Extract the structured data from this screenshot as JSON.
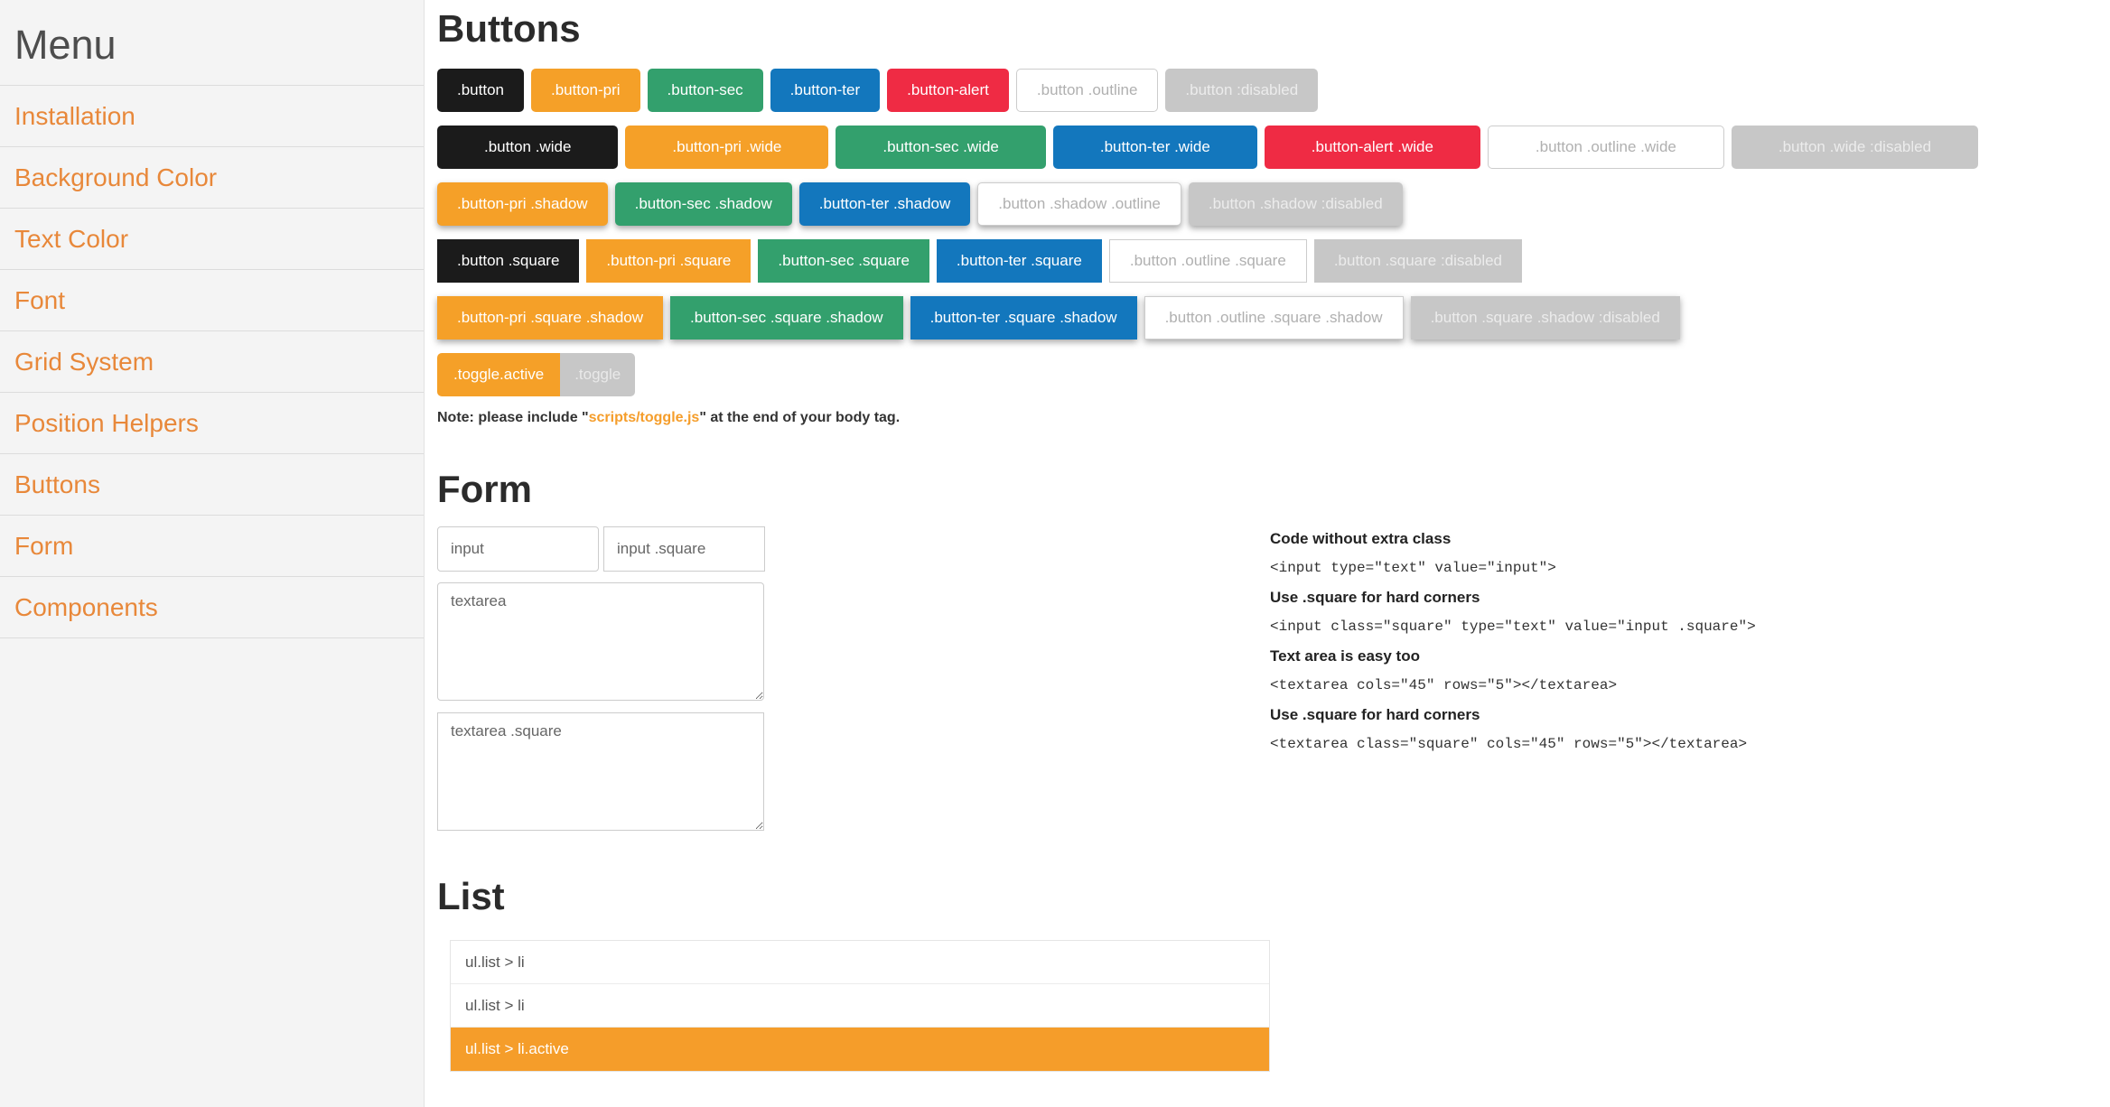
{
  "colors": {
    "button_black": "#1b1b1b",
    "primary_orange": "#f5a028",
    "secondary_green": "#33a06d",
    "tertiary_blue": "#1377bd",
    "alert_red": "#ef2b44",
    "disabled_gray": "#c7c7c7",
    "sidebar_link_orange": "#e8883a",
    "list_active_orange": "#f59d2a",
    "sidebar_background": "#f4f4f4"
  },
  "sidebar": {
    "title": "Menu",
    "items": [
      {
        "label": "Installation"
      },
      {
        "label": "Background Color"
      },
      {
        "label": "Text Color"
      },
      {
        "label": "Font"
      },
      {
        "label": "Grid System"
      },
      {
        "label": "Position Helpers"
      },
      {
        "label": "Buttons"
      },
      {
        "label": "Form"
      },
      {
        "label": "Components"
      }
    ]
  },
  "buttons": {
    "title": "Buttons",
    "rows": [
      [
        {
          "label": ".button",
          "variant": "default"
        },
        {
          "label": ".button-pri",
          "variant": "pri"
        },
        {
          "label": ".button-sec",
          "variant": "sec"
        },
        {
          "label": ".button-ter",
          "variant": "ter"
        },
        {
          "label": ".button-alert",
          "variant": "alert"
        },
        {
          "label": ".button .outline",
          "variant": "outline"
        },
        {
          "label": ".button :disabled",
          "variant": "disabled"
        }
      ],
      [
        {
          "label": ".button .wide",
          "variant": "default wide"
        },
        {
          "label": ".button-pri .wide",
          "variant": "pri wide"
        },
        {
          "label": ".button-sec .wide",
          "variant": "sec wide"
        },
        {
          "label": ".button-ter .wide",
          "variant": "ter wide"
        },
        {
          "label": ".button-alert .wide",
          "variant": "alert wide"
        },
        {
          "label": ".button .outline .wide",
          "variant": "outline wide"
        },
        {
          "label": ".button .wide :disabled",
          "variant": "disabled wide"
        }
      ],
      [
        {
          "label": ".button-pri .shadow",
          "variant": "pri shadow"
        },
        {
          "label": ".button-sec .shadow",
          "variant": "sec shadow"
        },
        {
          "label": ".button-ter .shadow",
          "variant": "ter shadow"
        },
        {
          "label": ".button .shadow .outline",
          "variant": "outline shadow"
        },
        {
          "label": ".button .shadow :disabled",
          "variant": "disabled shadow"
        }
      ],
      [
        {
          "label": ".button .square",
          "variant": "default square"
        },
        {
          "label": ".button-pri .square",
          "variant": "pri square"
        },
        {
          "label": ".button-sec .square",
          "variant": "sec square"
        },
        {
          "label": ".button-ter .square",
          "variant": "ter square"
        },
        {
          "label": ".button .outline .square",
          "variant": "outline square"
        },
        {
          "label": ".button .square :disabled",
          "variant": "disabled square"
        }
      ],
      [
        {
          "label": ".button-pri .square .shadow",
          "variant": "pri square shadow"
        },
        {
          "label": ".button-sec .square .shadow",
          "variant": "sec square shadow"
        },
        {
          "label": ".button-ter .square .shadow",
          "variant": "ter square shadow"
        },
        {
          "label": ".button .outline .square .shadow",
          "variant": "outline square shadow"
        },
        {
          "label": ".button .square .shadow :disabled",
          "variant": "disabled square shadow"
        }
      ]
    ],
    "toggle": [
      {
        "label": ".toggle.active",
        "variant": "toggle-active"
      },
      {
        "label": ".toggle",
        "variant": "toggle-off"
      }
    ],
    "note": {
      "prefix": "Note: please include \"",
      "link": "scripts/toggle.js",
      "suffix": "\" at the end of your body tag."
    }
  },
  "form": {
    "title": "Form",
    "inputs": [
      {
        "value": "input"
      },
      {
        "value": "input .square"
      }
    ],
    "textareas": [
      {
        "value": "textarea"
      },
      {
        "value": "textarea .square"
      }
    ],
    "code_examples": [
      {
        "label": "Code without extra class",
        "code": "<input type=\"text\" value=\"input\">"
      },
      {
        "label": "Use .square for hard corners",
        "code": "<input class=\"square\" type=\"text\" value=\"input .square\">"
      },
      {
        "label": "Text area is easy too",
        "code": "<textarea cols=\"45\" rows=\"5\"></textarea>"
      },
      {
        "label": "Use .square for hard corners",
        "code": "<textarea class=\"square\" cols=\"45\" rows=\"5\"></textarea>"
      }
    ]
  },
  "list": {
    "title": "List",
    "items": [
      {
        "label": "ul.list > li",
        "active": false
      },
      {
        "label": "ul.list > li",
        "active": false
      },
      {
        "label": "ul.list > li.active",
        "active": true
      }
    ]
  }
}
